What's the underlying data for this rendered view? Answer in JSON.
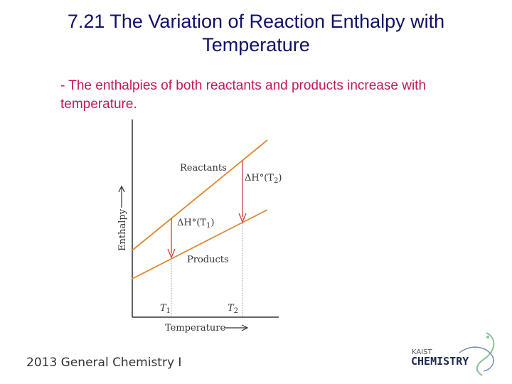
{
  "slide": {
    "title": "7.21 The Variation of Reaction Enthalpy with Temperature",
    "bullet": "- The enthalpies of both reactants and products increase with temperature.",
    "footer": "2013 General Chemistry I"
  },
  "diagram": {
    "y_axis_label": "Enthalpy",
    "x_axis_label": "Temperature",
    "line_labels": {
      "reactants": "Reactants",
      "products": "Products"
    },
    "delta_labels": {
      "t1": "ΔH°(T",
      "t1_sub": "1",
      "t2": "ΔH°(T",
      "t2_sub": "2",
      "close": ")"
    },
    "t_labels": {
      "t1": "T",
      "t1_sub": "1",
      "t2": "T",
      "t2_sub": "2"
    },
    "colors": {
      "lines": "#e0882f",
      "arrows": "#d63b3b",
      "axes": "#333333"
    }
  },
  "logo": {
    "top_text": "KAIST",
    "main_text": "CHEMISTRY"
  }
}
